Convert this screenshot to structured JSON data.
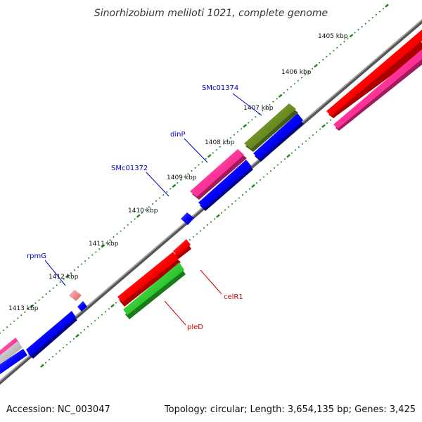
{
  "header": {
    "title": "Sinorhizobium meliloti 1021, complete genome"
  },
  "footer": {
    "accession": "Accession: NC_003047",
    "summary": "Topology: circular; Length: 3,654,135 bp; Genes: 3,425"
  },
  "ticks": [
    "1405 kbp",
    "1406 kbp",
    "1407 kbp",
    "1408 kbp",
    "1409 kbp",
    "1410 kbp",
    "1411 kbp",
    "1412 kbp",
    "1413 kbp"
  ],
  "gene_labels": {
    "smc01374": "SMc01374",
    "dinp": "dinP",
    "smc01372": "SMc01372",
    "rpmg": "rpmG",
    "celr1": "celR1",
    "pled": "pleD"
  },
  "colors": {
    "backbone": "#777777",
    "dots": "#1a8a1a",
    "label_blue": "#0000cc",
    "label_red": "#cc0000",
    "red": "#ff0000",
    "pink": "#ff3399",
    "blue": "#0000ff",
    "olive": "#6b8e23",
    "green": "#33cc33",
    "light_red": "#ff8080"
  }
}
